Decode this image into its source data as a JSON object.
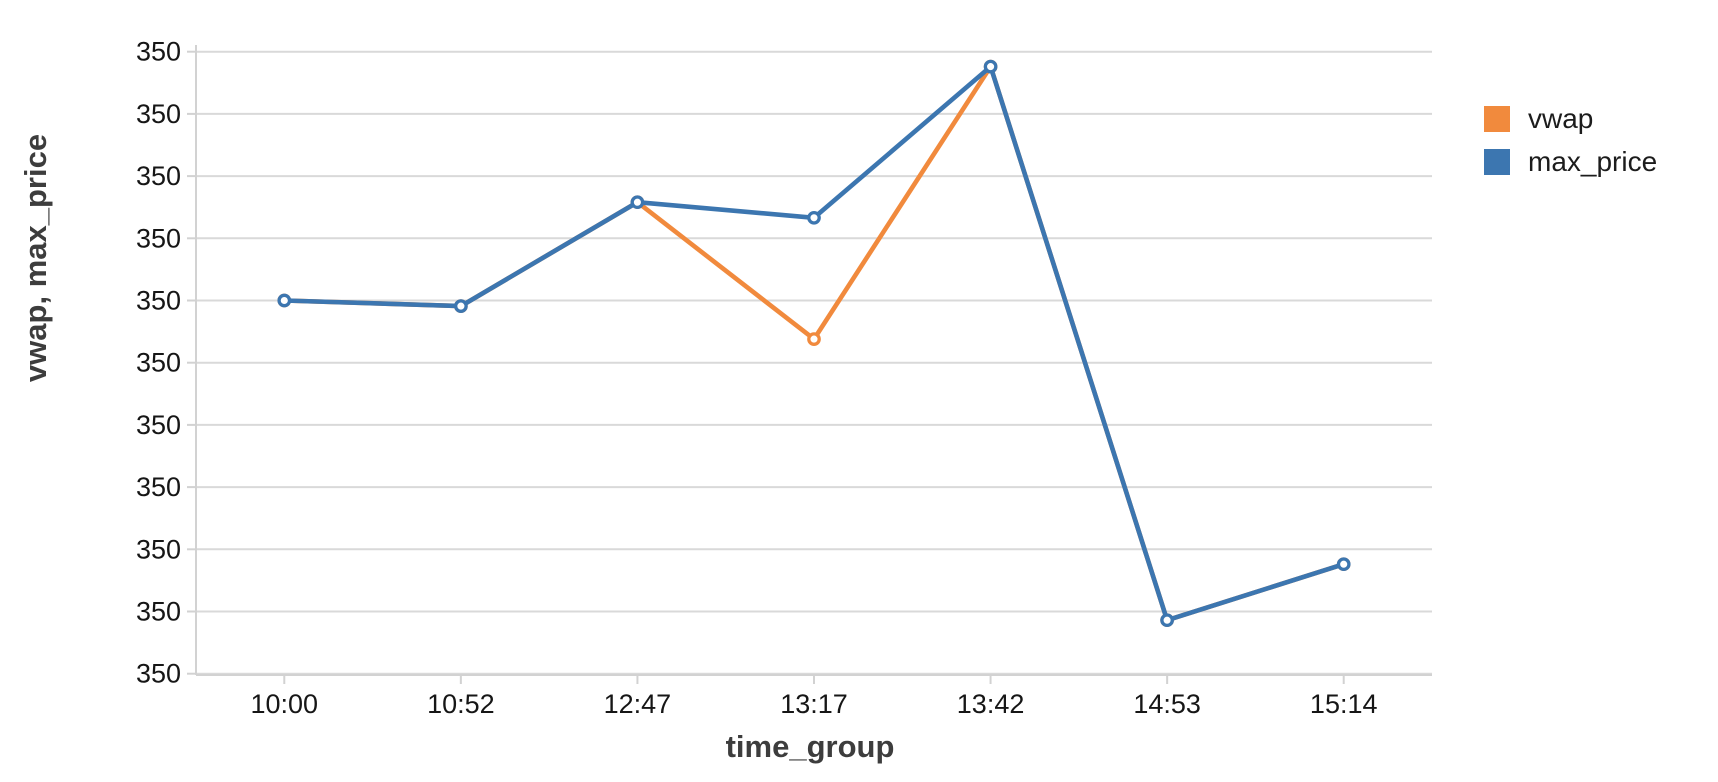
{
  "chart_data": {
    "type": "line",
    "title": "",
    "xlabel": "time_group",
    "ylabel": "vwap, max_price",
    "categories": [
      "10:00",
      "10:52",
      "12:47",
      "13:17",
      "13:42",
      "14:53",
      "15:14"
    ],
    "series": [
      {
        "name": "vwap",
        "color": "#f18a3d",
        "values": [
          350.01,
          350.0091,
          350.0258,
          350.0038,
          350.0476,
          349.9586,
          349.9676
        ]
      },
      {
        "name": "max_price",
        "color": "#3c76b0",
        "values": [
          350.01,
          350.0091,
          350.0258,
          350.0233,
          350.0476,
          349.9586,
          349.9676
        ]
      }
    ],
    "ylim": [
      349.95,
      350.05
    ],
    "y_tick_labels": [
      "350",
      "350",
      "350",
      "350",
      "350",
      "350",
      "350",
      "350",
      "350",
      "350",
      "350"
    ],
    "x_tick_labels": [
      "10:00",
      "10:52",
      "12:47",
      "13:17",
      "13:42",
      "14:53",
      "15:14"
    ],
    "grid": true,
    "legend_position": "right",
    "marker": "open-circle",
    "line_width": 4.6,
    "marker_radius": 5.2,
    "marker_stroke_width": 3.3
  },
  "style_colors": {
    "grid": "#d9d9d9",
    "domain": "#d2d2d2",
    "tick": "#d2d2d2",
    "tick_label": "#161616",
    "axis_title": "#3d3d3d",
    "legend_label": "#1c1c1c",
    "background": "#ffffff"
  }
}
